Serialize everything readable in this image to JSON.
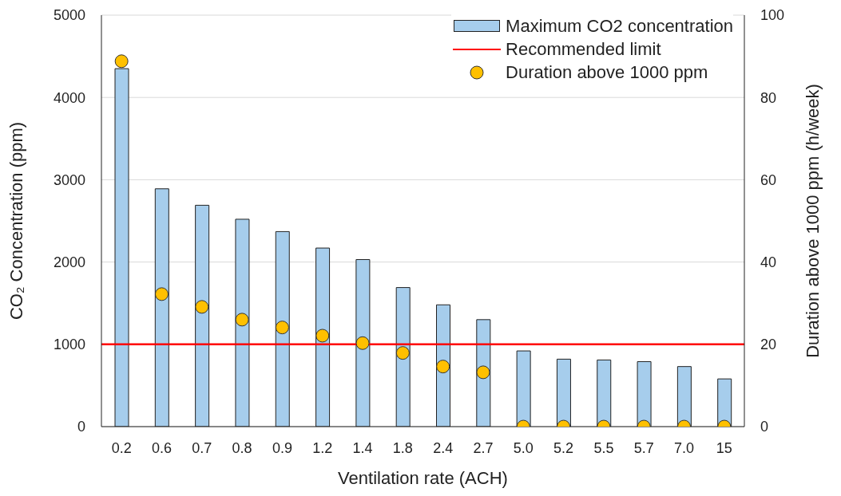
{
  "chart_data": {
    "type": "bar",
    "xlabel": "Ventilation rate (ACH)",
    "ylabel": "CO₂ Concentration (ppm)",
    "y2label": "Duration above 1000 ppm (h/week)",
    "categories": [
      "0.2",
      "0.6",
      "0.7",
      "0.8",
      "0.9",
      "1.2",
      "1.4",
      "1.8",
      "2.4",
      "2.7",
      "5.0",
      "5.2",
      "5.5",
      "5.7",
      "7.0",
      "15"
    ],
    "series": [
      {
        "name": "Maximum CO2 concentration",
        "color": "#a6cdec",
        "values": [
          4350,
          2890,
          2690,
          2520,
          2370,
          2170,
          2030,
          1690,
          1480,
          1300,
          920,
          820,
          810,
          790,
          730,
          580
        ]
      },
      {
        "name": "Duration above 1000 ppm",
        "type": "scatter",
        "axis": "y2",
        "color": "#ffc000",
        "marker": "circle",
        "values": [
          88.8,
          32.2,
          29.1,
          26.0,
          24.1,
          22.1,
          20.3,
          17.9,
          14.6,
          13.2,
          0,
          0,
          0,
          0,
          0,
          0
        ]
      }
    ],
    "ref_lines": [
      {
        "axis": "y",
        "value": 1000,
        "label": "Recommended limit",
        "color": "#ff0000"
      }
    ],
    "ylim": [
      0,
      5000
    ],
    "yticks": [
      0,
      1000,
      2000,
      3000,
      4000,
      5000
    ],
    "y2lim": [
      0,
      100
    ],
    "y2ticks": [
      0,
      20,
      40,
      60,
      80,
      100
    ],
    "grid": "y",
    "legend": "top right"
  }
}
